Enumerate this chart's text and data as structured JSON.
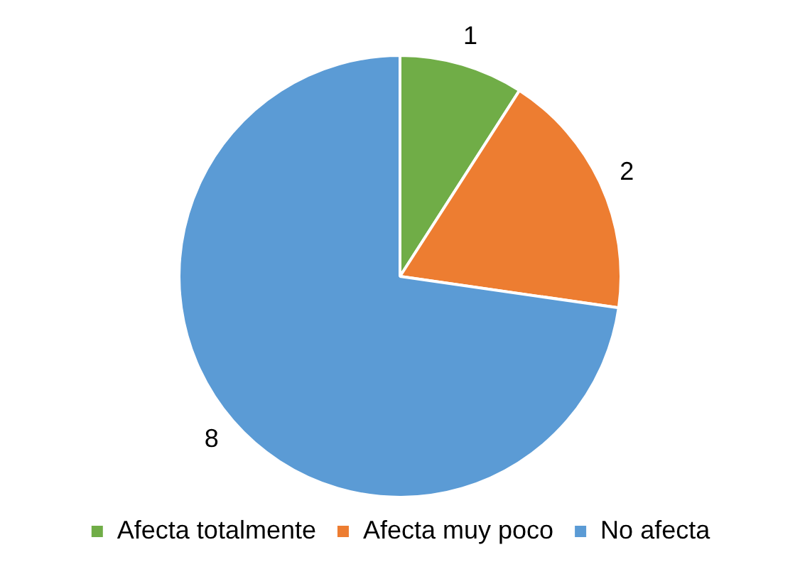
{
  "chart_data": {
    "type": "pie",
    "categories": [
      "Afecta totalmente",
      "Afecta muy poco",
      "No afecta"
    ],
    "values": [
      1,
      2,
      8
    ],
    "colors": [
      "#70ad47",
      "#ed7d31",
      "#5b9bd5"
    ],
    "data_labels": true,
    "legend": "bottom"
  }
}
